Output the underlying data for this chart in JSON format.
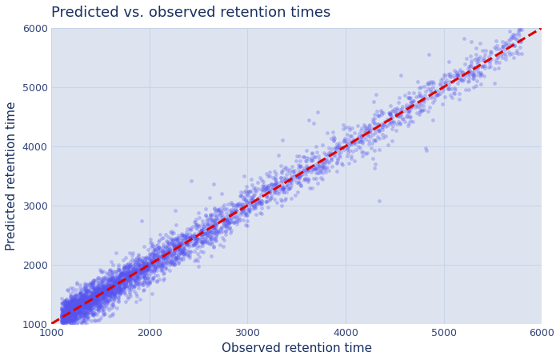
{
  "title": "Predicted vs. observed retention times",
  "xlabel": "Observed retention time",
  "ylabel": "Predicted retention time",
  "xlim": [
    1000,
    6000
  ],
  "ylim": [
    1000,
    6000
  ],
  "xticks": [
    1000,
    2000,
    3000,
    4000,
    5000,
    6000
  ],
  "yticks": [
    1000,
    2000,
    3000,
    4000,
    5000,
    6000
  ],
  "scatter_color": "#5555ee",
  "scatter_alpha": 0.3,
  "scatter_size": 12,
  "line_color": "#dd0000",
  "line_style": "--",
  "line_width": 2.2,
  "plot_bg": "#dde4f0",
  "figure_bg": "#ffffff",
  "title_color": "#1a3060",
  "label_color": "#1a3060",
  "tick_color": "#334477",
  "grid_color": "#c8d4e8",
  "n_points": 3500,
  "noise_std": 150,
  "title_fontsize": 13,
  "label_fontsize": 11
}
